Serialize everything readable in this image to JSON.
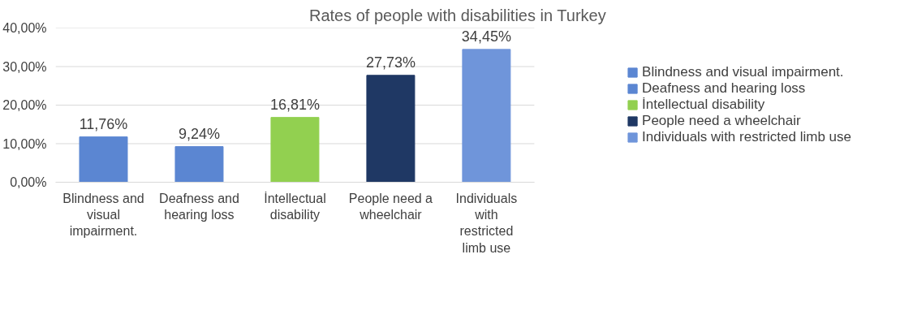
{
  "chart_data": {
    "type": "bar",
    "title": "Rates of people with disabilities in Turkey",
    "categories": [
      "Blindness and visual impairment.",
      "Deafness and hearing loss",
      "İntellectual disability",
      "People need a wheelchair",
      "Individuals with restricted limb use"
    ],
    "series": [
      {
        "name": "Blindness and visual impairment.",
        "color": "#5b86d2",
        "values": [
          11.76,
          null,
          null,
          null,
          null
        ],
        "value_labels": [
          "11,76%",
          null,
          null,
          null,
          null
        ]
      },
      {
        "name": "Deafness and hearing loss",
        "color": "#5b86d2",
        "values": [
          null,
          9.24,
          null,
          null,
          null
        ],
        "value_labels": [
          null,
          "9,24%",
          null,
          null,
          null
        ]
      },
      {
        "name": "İntellectual disability",
        "color": "#92d050",
        "values": [
          null,
          null,
          16.81,
          null,
          null
        ],
        "value_labels": [
          null,
          null,
          "16,81%",
          null,
          null
        ]
      },
      {
        "name": "People need a wheelchair",
        "color": "#1f3864",
        "values": [
          null,
          null,
          null,
          27.73,
          null
        ],
        "value_labels": [
          null,
          null,
          null,
          "27,73%",
          null
        ]
      },
      {
        "name": "Individuals with restricted limb use",
        "color": "#6f95da",
        "values": [
          null,
          null,
          null,
          null,
          34.45
        ],
        "value_labels": [
          null,
          null,
          null,
          null,
          "34,45%"
        ]
      }
    ],
    "ylim": [
      0,
      40
    ],
    "yticks": [
      {
        "value": 0,
        "label": "0,00%"
      },
      {
        "value": 10,
        "label": "10,00%"
      },
      {
        "value": 20,
        "label": "20,00%"
      },
      {
        "value": 30,
        "label": "30,00%"
      },
      {
        "value": 40,
        "label": "40,00%"
      }
    ],
    "grid": "y",
    "legend": "right"
  }
}
